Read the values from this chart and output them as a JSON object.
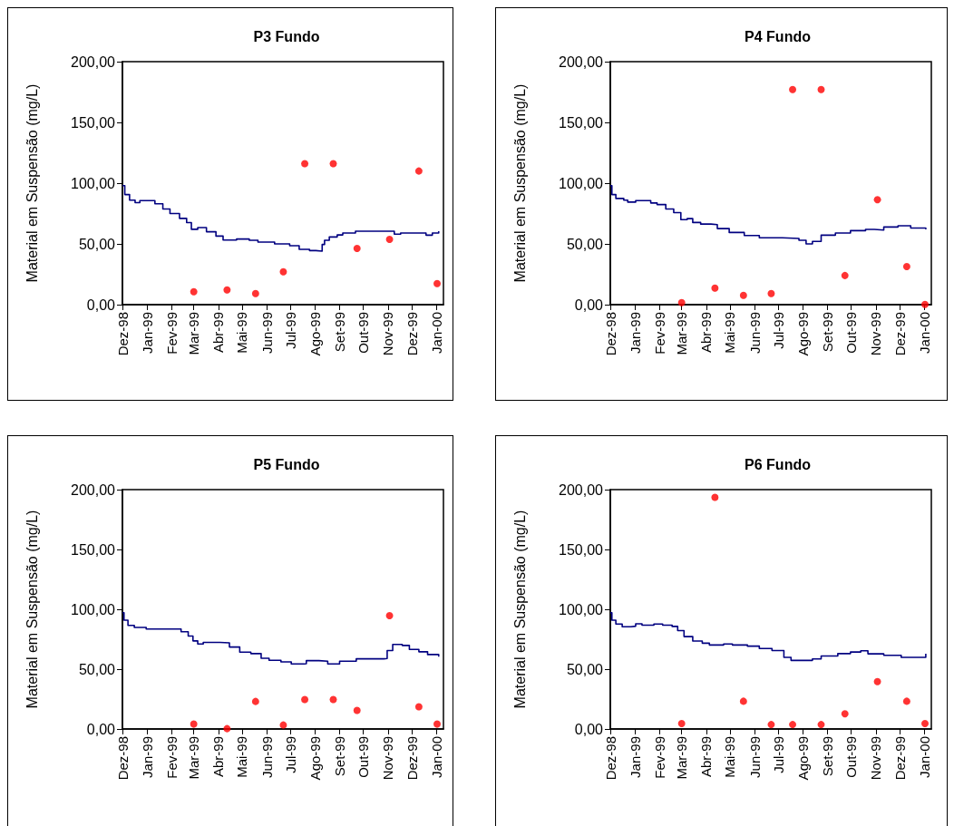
{
  "chart_data": [
    {
      "type": "step",
      "title": "P3 Fundo",
      "ylabel": "Material em Suspensão (mg/L)",
      "xlim": [
        "1998-12-01",
        "2000-01-10"
      ],
      "ylim": [
        0,
        200
      ],
      "xticks": [
        {
          "value": "1998-12-01",
          "label": "Dez-98"
        },
        {
          "value": "1999-01-01",
          "label": "Jan-99"
        },
        {
          "value": "1999-02-01",
          "label": "Fev-99"
        },
        {
          "value": "1999-03-01",
          "label": "Mar-99"
        },
        {
          "value": "1999-04-01",
          "label": "Abr-99"
        },
        {
          "value": "1999-05-01",
          "label": "Mai-99"
        },
        {
          "value": "1999-06-01",
          "label": "Jun-99"
        },
        {
          "value": "1999-07-01",
          "label": "Jul-99"
        },
        {
          "value": "1999-08-01",
          "label": "Ago-99"
        },
        {
          "value": "1999-09-01",
          "label": "Set-99"
        },
        {
          "value": "1999-10-01",
          "label": "Out-99"
        },
        {
          "value": "1999-11-01",
          "label": "Nov-99"
        },
        {
          "value": "1999-12-01",
          "label": "Dez-99"
        },
        {
          "value": "2000-01-01",
          "label": "Jan-00"
        }
      ],
      "yticks": [
        {
          "value": 0,
          "label": "0,00"
        },
        {
          "value": 50,
          "label": "50,00"
        },
        {
          "value": 100,
          "label": "100,00"
        },
        {
          "value": 150,
          "label": "150,00"
        },
        {
          "value": 200,
          "label": "200,00"
        }
      ],
      "grid": false,
      "series": [
        {
          "type": "step",
          "color": "#000080",
          "marker": "none",
          "x": [
            "1998-12-01",
            "1998-12-04",
            "1998-12-10",
            "1998-12-17",
            "1998-12-23",
            "1999-01-04",
            "1999-01-11",
            "1999-01-21",
            "1999-01-30",
            "1999-02-11",
            "1999-02-20",
            "1999-02-26",
            "1999-03-06",
            "1999-03-17",
            "1999-03-29",
            "1999-04-07",
            "1999-04-24",
            "1999-05-10",
            "1999-05-21",
            "1999-06-11",
            "1999-06-30",
            "1999-07-12",
            "1999-07-25",
            "1999-08-02",
            "1999-08-10",
            "1999-08-13",
            "1999-08-19",
            "1999-08-29",
            "1999-09-05",
            "1999-09-21",
            "1999-10-31",
            "1999-11-09",
            "1999-11-17",
            "1999-12-14",
            "1999-12-19",
            "1999-12-27",
            "2000-01-04"
          ],
          "values": [
            98,
            90.6,
            86,
            84,
            85.6,
            85.6,
            83,
            78.7,
            75,
            71,
            67.5,
            62,
            63.4,
            60,
            56.4,
            53.2,
            54,
            53,
            51.5,
            50,
            48.5,
            45.5,
            44.5,
            44,
            49.5,
            53,
            55.7,
            57.4,
            59,
            60.4,
            60.4,
            58,
            59,
            59,
            57.2,
            59,
            60.4
          ]
        },
        {
          "type": "scatter",
          "color": "#ff0000",
          "marker": "circle",
          "x": [
            "1999-03-01",
            "1999-04-12",
            "1999-05-18",
            "1999-06-22",
            "1999-07-19",
            "1999-08-24",
            "1999-09-23",
            "1999-11-03",
            "1999-12-10",
            "2000-01-02"
          ],
          "values": [
            10.6,
            12.1,
            9.2,
            27,
            116,
            116,
            46.3,
            53.7,
            110,
            17.3
          ]
        }
      ]
    },
    {
      "type": "step",
      "title": "P4 Fundo",
      "ylabel": "Material em Suspensão (mg/L)",
      "xlim": [
        "1998-12-01",
        "2000-01-10"
      ],
      "ylim": [
        0,
        200
      ],
      "xticks": [
        {
          "value": "1998-12-01",
          "label": "Dez-98"
        },
        {
          "value": "1999-01-01",
          "label": "Jan-99"
        },
        {
          "value": "1999-02-01",
          "label": "Fev-99"
        },
        {
          "value": "1999-03-01",
          "label": "Mar-99"
        },
        {
          "value": "1999-04-01",
          "label": "Abr-99"
        },
        {
          "value": "1999-05-01",
          "label": "Mai-99"
        },
        {
          "value": "1999-06-01",
          "label": "Jun-99"
        },
        {
          "value": "1999-07-01",
          "label": "Jul-99"
        },
        {
          "value": "1999-08-01",
          "label": "Ago-99"
        },
        {
          "value": "1999-09-01",
          "label": "Set-99"
        },
        {
          "value": "1999-10-01",
          "label": "Out-99"
        },
        {
          "value": "1999-11-01",
          "label": "Nov-99"
        },
        {
          "value": "1999-12-01",
          "label": "Dez-99"
        },
        {
          "value": "2000-01-01",
          "label": "Jan-00"
        }
      ],
      "yticks": [
        {
          "value": 0,
          "label": "0,00"
        },
        {
          "value": 50,
          "label": "50,00"
        },
        {
          "value": 100,
          "label": "100,00"
        },
        {
          "value": 150,
          "label": "150,00"
        },
        {
          "value": 200,
          "label": "200,00"
        }
      ],
      "grid": false,
      "series": [
        {
          "type": "step",
          "color": "#000080",
          "marker": "none",
          "x": [
            "1998-12-01",
            "1998-12-03",
            "1998-12-08",
            "1998-12-18",
            "1998-12-23",
            "1999-01-02",
            "1999-01-21",
            "1999-01-29",
            "1999-02-09",
            "1999-02-19",
            "1999-02-28",
            "1999-03-08",
            "1999-03-15",
            "1999-03-25",
            "1999-04-07",
            "1999-04-15",
            "1999-04-30",
            "1999-05-19",
            "1999-06-07",
            "1999-07-06",
            "1999-07-27",
            "1999-08-05",
            "1999-08-13",
            "1999-08-24",
            "1999-09-11",
            "1999-09-30",
            "1999-10-19",
            "1999-10-30",
            "1999-11-11",
            "1999-11-29",
            "1999-12-15",
            "2000-01-03"
          ],
          "values": [
            98,
            90.6,
            87.4,
            86,
            84.4,
            85.6,
            83.7,
            82.4,
            78.7,
            75.7,
            70,
            70.8,
            67.6,
            66.3,
            65.8,
            62.6,
            59.4,
            56.9,
            55,
            54.5,
            53,
            50,
            52,
            57.2,
            59,
            60.9,
            61.9,
            61.4,
            63.9,
            64.9,
            63.1,
            61.9
          ]
        },
        {
          "type": "scatter",
          "color": "#ff0000",
          "marker": "circle",
          "x": [
            "1999-03-01",
            "1999-04-12",
            "1999-05-18",
            "1999-06-22",
            "1999-07-19",
            "1999-08-24",
            "1999-09-23",
            "1999-11-03",
            "1999-12-10",
            "2000-01-02"
          ],
          "values": [
            1.7,
            13.6,
            7.7,
            9.2,
            177,
            177,
            24,
            86.4,
            31.4,
            0.2
          ]
        }
      ]
    },
    {
      "type": "step",
      "title": "P5 Fundo",
      "ylabel": "Material em Suspensão (mg/L)",
      "xlim": [
        "1998-12-01",
        "2000-01-10"
      ],
      "ylim": [
        0,
        200
      ],
      "xticks": [
        {
          "value": "1998-12-01",
          "label": "Dez-98"
        },
        {
          "value": "1999-01-01",
          "label": "Jan-99"
        },
        {
          "value": "1999-02-01",
          "label": "Fev-99"
        },
        {
          "value": "1999-03-01",
          "label": "Mar-99"
        },
        {
          "value": "1999-04-01",
          "label": "Abr-99"
        },
        {
          "value": "1999-05-01",
          "label": "Mai-99"
        },
        {
          "value": "1999-06-01",
          "label": "Jun-99"
        },
        {
          "value": "1999-07-01",
          "label": "Jul-99"
        },
        {
          "value": "1999-08-01",
          "label": "Ago-99"
        },
        {
          "value": "1999-09-01",
          "label": "Set-99"
        },
        {
          "value": "1999-10-01",
          "label": "Out-99"
        },
        {
          "value": "1999-11-01",
          "label": "Nov-99"
        },
        {
          "value": "1999-12-01",
          "label": "Dez-99"
        },
        {
          "value": "2000-01-01",
          "label": "Jan-00"
        }
      ],
      "yticks": [
        {
          "value": 0,
          "label": "0,00"
        },
        {
          "value": 50,
          "label": "50,00"
        },
        {
          "value": 100,
          "label": "100,00"
        },
        {
          "value": 150,
          "label": "150,00"
        },
        {
          "value": 200,
          "label": "200,00"
        }
      ],
      "grid": false,
      "series": [
        {
          "type": "step",
          "color": "#000080",
          "marker": "none",
          "x": [
            "1998-12-01",
            "1998-12-03",
            "1998-12-08",
            "1998-12-16",
            "1998-12-31",
            "1999-02-01",
            "1999-02-13",
            "1999-02-22",
            "1999-02-28",
            "1999-03-06",
            "1999-03-13",
            "1999-04-03",
            "1999-04-15",
            "1999-04-28",
            "1999-05-12",
            "1999-05-25",
            "1999-06-04",
            "1999-06-19",
            "1999-07-02",
            "1999-07-18",
            "1999-07-21",
            "1999-08-06",
            "1999-08-17",
            "1999-09-01",
            "1999-09-22",
            "1999-10-27",
            "1999-10-31",
            "1999-11-07",
            "1999-11-19",
            "1999-11-28",
            "1999-12-10",
            "1999-12-21",
            "2000-01-04"
          ],
          "values": [
            97.2,
            90.9,
            86.5,
            84.8,
            83.5,
            83.5,
            81.2,
            77.7,
            73.6,
            71,
            72.3,
            72,
            68.5,
            64.2,
            63,
            59.1,
            57.4,
            56.1,
            54.3,
            54.6,
            57.1,
            56.6,
            54.3,
            56.6,
            58.6,
            58.9,
            65.5,
            70.6,
            69.8,
            66.5,
            64.5,
            62.2,
            60.4
          ]
        },
        {
          "type": "scatter",
          "color": "#ff0000",
          "marker": "circle",
          "x": [
            "1999-03-01",
            "1999-04-12",
            "1999-05-18",
            "1999-06-22",
            "1999-07-19",
            "1999-08-24",
            "1999-09-23",
            "1999-11-03",
            "1999-12-10",
            "2000-01-02"
          ],
          "values": [
            4.1,
            0.3,
            23,
            3.3,
            24.6,
            24.6,
            15.5,
            94.7,
            18.5,
            4.1
          ]
        }
      ]
    },
    {
      "type": "step",
      "title": "P6 Fundo",
      "ylabel": "Material em Suspensão (mg/L)",
      "xlim": [
        "1998-12-01",
        "2000-01-10"
      ],
      "ylim": [
        0,
        200
      ],
      "xticks": [
        {
          "value": "1998-12-01",
          "label": "Dez-98"
        },
        {
          "value": "1999-01-01",
          "label": "Jan-99"
        },
        {
          "value": "1999-02-01",
          "label": "Fev-99"
        },
        {
          "value": "1999-03-01",
          "label": "Mar-99"
        },
        {
          "value": "1999-04-01",
          "label": "Abr-99"
        },
        {
          "value": "1999-05-01",
          "label": "Mai-99"
        },
        {
          "value": "1999-06-01",
          "label": "Jun-99"
        },
        {
          "value": "1999-07-01",
          "label": "Jul-99"
        },
        {
          "value": "1999-08-01",
          "label": "Ago-99"
        },
        {
          "value": "1999-09-01",
          "label": "Set-99"
        },
        {
          "value": "1999-10-01",
          "label": "Out-99"
        },
        {
          "value": "1999-11-01",
          "label": "Nov-99"
        },
        {
          "value": "1999-12-01",
          "label": "Dez-99"
        },
        {
          "value": "2000-01-01",
          "label": "Jan-00"
        }
      ],
      "yticks": [
        {
          "value": 0,
          "label": "0,00"
        },
        {
          "value": 50,
          "label": "50,00"
        },
        {
          "value": 100,
          "label": "100,00"
        },
        {
          "value": 150,
          "label": "150,00"
        },
        {
          "value": 200,
          "label": "200,00"
        }
      ],
      "grid": false,
      "series": [
        {
          "type": "step",
          "color": "#000080",
          "marker": "none",
          "x": [
            "1998-12-01",
            "1998-12-03",
            "1998-12-08",
            "1998-12-16",
            "1998-12-27",
            "1999-01-02",
            "1999-01-10",
            "1999-01-25",
            "1999-02-05",
            "1999-02-17",
            "1999-02-24",
            "1999-03-04",
            "1999-03-15",
            "1999-03-27",
            "1999-04-05",
            "1999-04-23",
            "1999-05-04",
            "1999-05-23",
            "1999-06-07",
            "1999-06-23",
            "1999-07-08",
            "1999-07-17",
            "1999-08-05",
            "1999-08-13",
            "1999-08-24",
            "1999-09-14",
            "1999-09-30",
            "1999-10-13",
            "1999-10-22",
            "1999-11-11",
            "1999-12-03",
            "1999-12-26",
            "2000-01-03"
          ],
          "values": [
            97.1,
            90.9,
            87.7,
            85.4,
            85.9,
            87.9,
            86.7,
            87.7,
            86.7,
            85.7,
            82.2,
            77.2,
            73.5,
            71.7,
            70.2,
            71,
            70.2,
            69.2,
            67.2,
            65.5,
            59.8,
            57.3,
            57.3,
            58.5,
            61,
            63,
            64.3,
            65.3,
            62.8,
            61.5,
            59.8,
            59.8,
            62.8
          ]
        },
        {
          "type": "scatter",
          "color": "#ff0000",
          "marker": "circle",
          "x": [
            "1999-03-01",
            "1999-04-12",
            "1999-05-18",
            "1999-06-22",
            "1999-07-19",
            "1999-08-24",
            "1999-09-23",
            "1999-11-03",
            "1999-12-10",
            "2000-01-02"
          ],
          "values": [
            4.5,
            193.5,
            23.2,
            3.7,
            3.7,
            3.7,
            12.7,
            39.6,
            23.2,
            4.5
          ]
        }
      ]
    }
  ]
}
